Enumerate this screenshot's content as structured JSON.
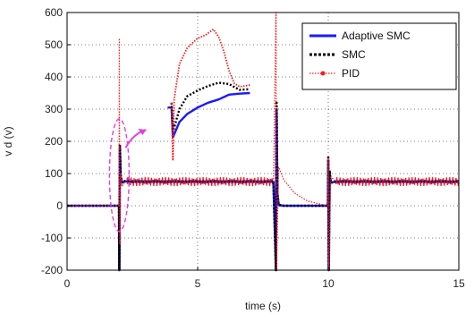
{
  "chart_data": {
    "type": "line",
    "xlabel": "time (s)",
    "ylabel": "v d (v)",
    "xlim": [
      0,
      15
    ],
    "ylim": [
      -200,
      600
    ],
    "x_ticks": [
      0,
      5,
      10,
      15
    ],
    "y_ticks": [
      -200,
      -100,
      0,
      100,
      200,
      300,
      400,
      500,
      600
    ],
    "grid": "dotted",
    "legend_position": "top-right",
    "colors": {
      "adaptive": "#1a1aff",
      "smc": "#000000",
      "pid": "#ff1a1a",
      "annotation": "#e040e0"
    },
    "series": [
      {
        "name": "Adaptive SMC",
        "style": "solid",
        "x": [
          0,
          1.99,
          2.0,
          2.02,
          2.05,
          2.1,
          2.2,
          2.5,
          5,
          7.9,
          8.0,
          8.02,
          8.05,
          8.1,
          8.3,
          9.99,
          10.0,
          10.02,
          10.05,
          10.1,
          10.3,
          15
        ],
        "y": [
          0,
          0,
          -200,
          180,
          90,
          72,
          76,
          75,
          75,
          75,
          -200,
          300,
          40,
          2,
          0,
          0,
          140,
          -200,
          100,
          72,
          75,
          75
        ]
      },
      {
        "name": "SMC",
        "style": "dotted",
        "x": [
          0,
          1.99,
          2.0,
          2.02,
          2.05,
          2.1,
          2.2,
          2.5,
          5,
          7.9,
          8.0,
          8.02,
          8.05,
          8.1,
          8.3,
          9.99,
          10.0,
          10.02,
          10.05,
          10.1,
          10.3,
          15
        ],
        "y": [
          0,
          0,
          -200,
          190,
          95,
          72,
          76,
          75,
          75,
          75,
          -200,
          320,
          40,
          3,
          0,
          0,
          150,
          -200,
          110,
          72,
          75,
          75
        ]
      },
      {
        "name": "PID",
        "style": "dotted-marker",
        "x": [
          0,
          1.99,
          2.0,
          2.02,
          2.05,
          2.1,
          2.3,
          2.6,
          5,
          7.9,
          8.0,
          8.02,
          8.1,
          8.3,
          8.7,
          9.2,
          9.7,
          9.99,
          10.0,
          10.02,
          10.1,
          10.3,
          15
        ],
        "y": [
          0,
          0,
          520,
          -120,
          100,
          60,
          85,
          75,
          75,
          75,
          600,
          -200,
          120,
          80,
          40,
          15,
          5,
          0,
          150,
          -200,
          90,
          75,
          75
        ]
      }
    ],
    "inset": {
      "series": [
        {
          "name": "Adaptive SMC",
          "x": [
            3.85,
            4.0,
            4.05,
            4.3,
            4.6,
            5.0,
            5.4,
            5.8,
            6.2,
            6.6,
            7.0
          ],
          "y": [
            305,
            305,
            212,
            260,
            285,
            305,
            320,
            330,
            345,
            348,
            350
          ]
        },
        {
          "name": "SMC",
          "x": [
            4.0,
            4.05,
            4.3,
            4.6,
            5.0,
            5.4,
            5.8,
            6.2,
            6.6,
            7.0
          ],
          "y": [
            320,
            228,
            300,
            340,
            358,
            372,
            382,
            378,
            360,
            362
          ]
        },
        {
          "name": "PID",
          "x": [
            4.0,
            4.05,
            4.1,
            4.3,
            4.6,
            5.0,
            5.3,
            5.6,
            5.8,
            6.0,
            6.2,
            6.4,
            6.6,
            6.8,
            7.0
          ],
          "y": [
            320,
            140,
            330,
            440,
            490,
            520,
            530,
            548,
            525,
            480,
            420,
            380,
            370,
            372,
            375
          ]
        }
      ]
    }
  }
}
